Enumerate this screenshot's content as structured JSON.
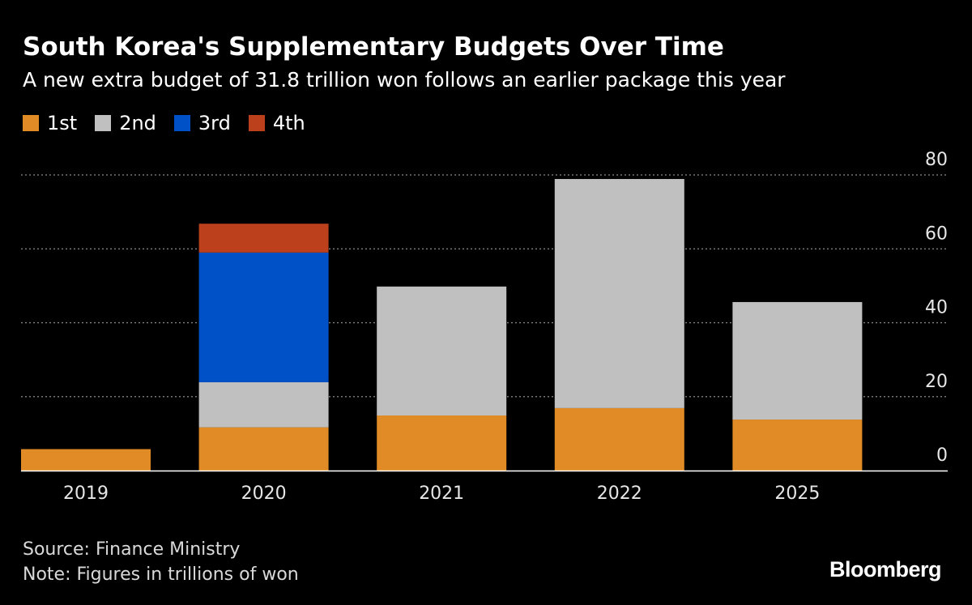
{
  "chart_data": {
    "type": "bar",
    "stacked": true,
    "title": "South Korea's Supplementary Budgets Over Time",
    "subtitle": "A new extra budget of 31.8 trillion won follows an earlier package this year",
    "categories": [
      "2019",
      "2020",
      "2021",
      "2022",
      "2025"
    ],
    "series": [
      {
        "name": "1st",
        "color": "#e08b25",
        "values": [
          5.8,
          11.7,
          14.9,
          16.9,
          13.8
        ]
      },
      {
        "name": "2nd",
        "color": "#c0c0c0",
        "values": [
          0,
          12.2,
          34.9,
          62.0,
          31.8
        ]
      },
      {
        "name": "3rd",
        "color": "#0051c8",
        "values": [
          0,
          35.1,
          0,
          0,
          0
        ]
      },
      {
        "name": "4th",
        "color": "#bc401c",
        "values": [
          0,
          7.8,
          0,
          0,
          0
        ]
      }
    ],
    "ylim": [
      0,
      80
    ],
    "yticks": [
      0,
      20,
      40,
      60,
      80
    ],
    "grid": true,
    "legend_position": "top-left"
  },
  "footer": {
    "source": "Source: Finance Ministry",
    "note": "Note: Figures in trillions of won",
    "brand": "Bloomberg"
  }
}
